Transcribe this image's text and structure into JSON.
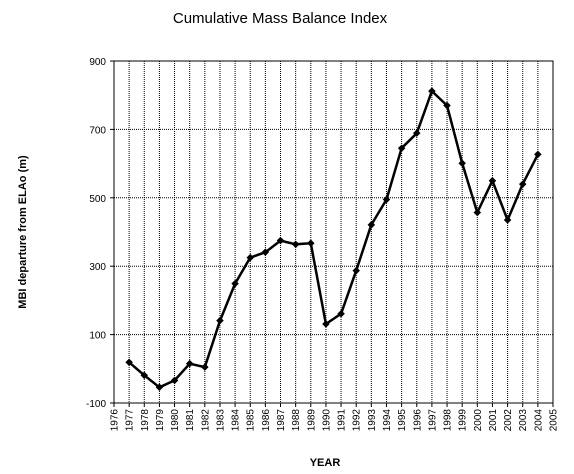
{
  "chart_data": {
    "type": "line",
    "title": "Cumulative Mass Balance Index",
    "xlabel": "YEAR",
    "ylabel": "MBI departure from ELAo (m)",
    "xlim": [
      1976,
      2005
    ],
    "ylim": [
      -100,
      900
    ],
    "x_ticks": [
      1976,
      1977,
      1978,
      1979,
      1980,
      1981,
      1982,
      1983,
      1984,
      1985,
      1986,
      1987,
      1988,
      1989,
      1990,
      1991,
      1992,
      1993,
      1994,
      1995,
      1996,
      1997,
      1998,
      1999,
      2000,
      2001,
      2002,
      2003,
      2004,
      2005
    ],
    "y_ticks": [
      -100,
      100,
      300,
      500,
      700,
      900
    ],
    "grid": "vertical at each year, horizontal at each y tick",
    "legend": "none",
    "line_color": "#000000",
    "series": [
      {
        "x": [
          1977,
          1978,
          1979,
          1980,
          1981,
          1982,
          1983,
          1984,
          1985,
          1986,
          1987,
          1988,
          1989,
          1990,
          1991,
          1992,
          1993,
          1994,
          1995,
          1996,
          1997,
          1998,
          1999,
          2000,
          2001,
          2002,
          2003,
          2004
        ],
        "values": [
          19,
          -19,
          -54,
          -34,
          15,
          5,
          141,
          249,
          325,
          341,
          375,
          364,
          367,
          131,
          161,
          287,
          421,
          495,
          645,
          689,
          812,
          770,
          601,
          457,
          550,
          435,
          540,
          627
        ]
      }
    ]
  }
}
